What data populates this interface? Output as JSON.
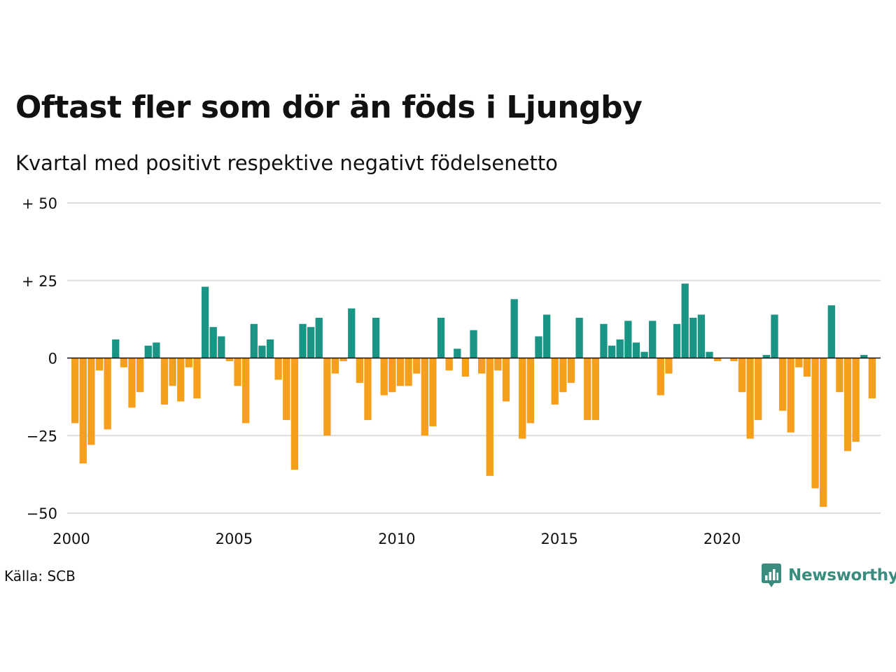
{
  "chart_data": {
    "type": "bar",
    "title": "Oftast fler som dör än föds i Ljungby",
    "subtitle": "Kvartal med positivt respektive negativt födelsenetto",
    "xlabel": "",
    "ylabel": "",
    "ylim": [
      -50,
      50
    ],
    "y_ticks": [
      {
        "value": 50,
        "label": "+ 50"
      },
      {
        "value": 25,
        "label": "+ 25"
      },
      {
        "value": 0,
        "label": "0"
      },
      {
        "value": -25,
        "label": "−25"
      },
      {
        "value": -50,
        "label": "−50"
      }
    ],
    "x_ticks": [
      {
        "year": 2000,
        "label": "2000"
      },
      {
        "year": 2005,
        "label": "2005"
      },
      {
        "year": 2010,
        "label": "2010"
      },
      {
        "year": 2015,
        "label": "2015"
      },
      {
        "year": 2020,
        "label": "2020"
      }
    ],
    "start_year": 2000,
    "colors": {
      "positive": "#1a9585",
      "negative": "#f59f1d",
      "grid": "#dedede",
      "zero_line": "#111111"
    },
    "grid": true,
    "legend": "none",
    "values": [
      -21,
      -34,
      -28,
      -4,
      -23,
      6,
      -3,
      -16,
      -11,
      4,
      5,
      -15,
      -9,
      -14,
      -3,
      -13,
      23,
      10,
      7,
      -1,
      -9,
      -21,
      11,
      4,
      6,
      -7,
      -20,
      -36,
      11,
      10,
      13,
      -25,
      -5,
      -1,
      16,
      -8,
      -20,
      13,
      -12,
      -11,
      -9,
      -9,
      -5,
      -25,
      -22,
      13,
      -4,
      3,
      -6,
      9,
      -5,
      -38,
      -4,
      -14,
      19,
      -26,
      -21,
      7,
      14,
      -15,
      -11,
      -8,
      13,
      -20,
      -20,
      11,
      4,
      6,
      12,
      5,
      2,
      12,
      -12,
      -5,
      11,
      24,
      13,
      14,
      2,
      -1,
      0,
      -1,
      -11,
      -26,
      -20,
      1,
      14,
      -17,
      -24,
      -3,
      -6,
      -42,
      -48,
      17,
      -11,
      -30,
      -27,
      1,
      -13
    ]
  },
  "footer": {
    "source": "Källa: SCB",
    "brand": "Newsworthy"
  }
}
